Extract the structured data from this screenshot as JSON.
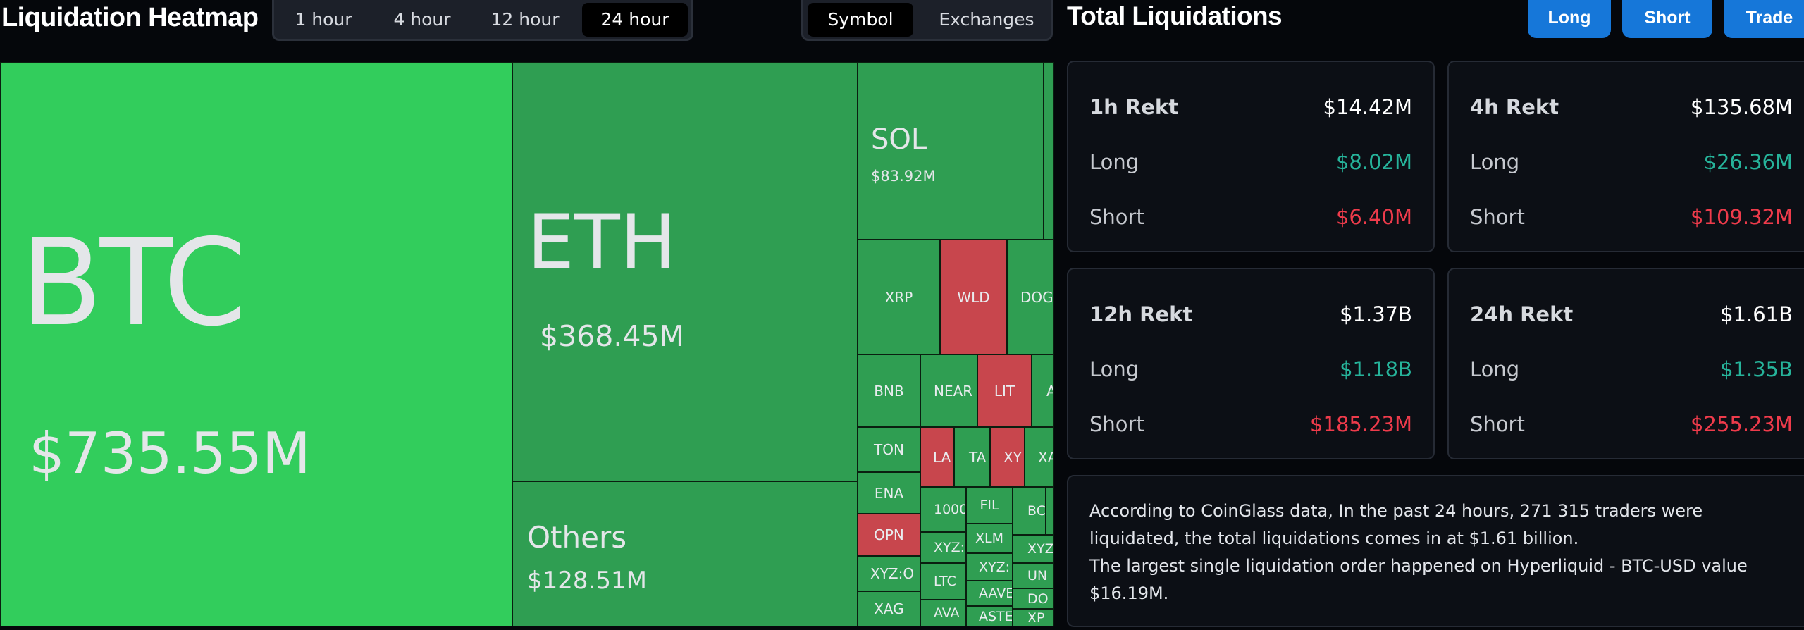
{
  "heatmap": {
    "title": "Liquidation Heatmap",
    "time_tabs": [
      "1 hour",
      "4 hour",
      "12 hour",
      "24 hour"
    ],
    "active_time_tab": "24 hour",
    "view_tabs": [
      "Symbol",
      "Exchanges"
    ],
    "active_view_tab": "Symbol",
    "tiles": {
      "btc": {
        "symbol": "BTC",
        "value": "$735.55M"
      },
      "eth": {
        "symbol": "ETH",
        "value": "$368.45M"
      },
      "others": {
        "symbol": "Others",
        "value": "$128.51M"
      },
      "sol": {
        "symbol": "SOL",
        "value": "$83.92M"
      },
      "xrp": "XRP",
      "wld": "WLD",
      "dog": "DOG",
      "bnb": "BNB",
      "near": "NEAR",
      "lit": "LIT",
      "a": "A",
      "ton": "TON",
      "la": "LA",
      "ta": "TA",
      "xy": "XY",
      "xa": "XA",
      "ena": "ENA",
      "opn": "OPN",
      "xyz_o": "XYZ:O",
      "xag": "XAG",
      "k1000": "1000",
      "xyz_1": "XYZ:",
      "ltc": "LTC",
      "ava": "AVA",
      "fil": "FIL",
      "xlm": "XLM",
      "xyz_2": "XYZ:",
      "aave": "AAVE",
      "aste": "ASTE",
      "bc": "BC",
      "xyz_3": "XYZ",
      "un": "UN",
      "do": "DO",
      "xp": "XP"
    }
  },
  "total": {
    "title": "Total Liquidations",
    "buttons": [
      "Long",
      "Short",
      "Trade"
    ],
    "cards": [
      {
        "label": "1h Rekt",
        "total": "$14.42M",
        "long_label": "Long",
        "long": "$8.02M",
        "short_label": "Short",
        "short": "$6.40M"
      },
      {
        "label": "4h Rekt",
        "total": "$135.68M",
        "long_label": "Long",
        "long": "$26.36M",
        "short_label": "Short",
        "short": "$109.32M"
      },
      {
        "label": "12h Rekt",
        "total": "$1.37B",
        "long_label": "Long",
        "long": "$1.18B",
        "short_label": "Short",
        "short": "$185.23M"
      },
      {
        "label": "24h Rekt",
        "total": "$1.61B",
        "long_label": "Long",
        "long": "$1.35B",
        "short_label": "Short",
        "short": "$255.23M"
      }
    ],
    "summary_1": "According to CoinGlass data, In the past 24 hours, 271 315 traders were liquidated, the total liquidations comes in at $1.61 billion.",
    "summary_2": "The largest single liquidation order happened on Hyperliquid - BTC-USD value $16.19M."
  },
  "colors": {
    "long": "#26b39a",
    "short": "#ee3b4b",
    "accent": "#1677d9",
    "gain_tile": "#32cd5c",
    "loss_tile": "#c8464d"
  }
}
